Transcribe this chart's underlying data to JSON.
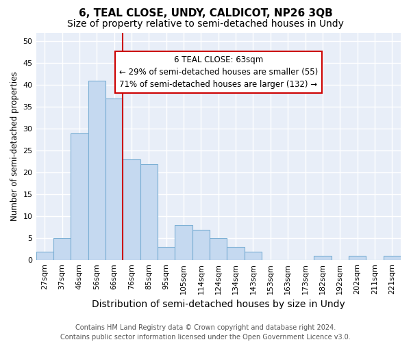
{
  "title1": "6, TEAL CLOSE, UNDY, CALDICOT, NP26 3QB",
  "title2": "Size of property relative to semi-detached houses in Undy",
  "xlabel": "Distribution of semi-detached houses by size in Undy",
  "ylabel": "Number of semi-detached properties",
  "categories": [
    "27sqm",
    "37sqm",
    "46sqm",
    "56sqm",
    "66sqm",
    "76sqm",
    "85sqm",
    "95sqm",
    "105sqm",
    "114sqm",
    "124sqm",
    "134sqm",
    "143sqm",
    "153sqm",
    "163sqm",
    "173sqm",
    "182sqm",
    "192sqm",
    "202sqm",
    "211sqm",
    "221sqm"
  ],
  "values": [
    2,
    5,
    29,
    41,
    37,
    23,
    22,
    3,
    8,
    7,
    5,
    3,
    2,
    0,
    0,
    0,
    1,
    0,
    1,
    0,
    1
  ],
  "bar_color": "#c5d9f0",
  "bar_edge_color": "#7bafd4",
  "vline_color": "#cc0000",
  "vline_x": 4.5,
  "annotation_text": "6 TEAL CLOSE: 63sqm\n← 29% of semi-detached houses are smaller (55)\n71% of semi-detached houses are larger (132) →",
  "annotation_box_color": "#ffffff",
  "annotation_box_edge": "#cc0000",
  "ylim": [
    0,
    52
  ],
  "yticks": [
    0,
    5,
    10,
    15,
    20,
    25,
    30,
    35,
    40,
    45,
    50
  ],
  "fig_bg_color": "#ffffff",
  "plot_bg_color": "#e8eef8",
  "grid_color": "#ffffff",
  "title1_fontsize": 11,
  "title2_fontsize": 10,
  "xlabel_fontsize": 10,
  "ylabel_fontsize": 8.5,
  "tick_fontsize": 8,
  "annot_fontsize": 8.5,
  "footer_fontsize": 7,
  "footer1": "Contains HM Land Registry data © Crown copyright and database right 2024.",
  "footer2": "Contains public sector information licensed under the Open Government Licence v3.0."
}
